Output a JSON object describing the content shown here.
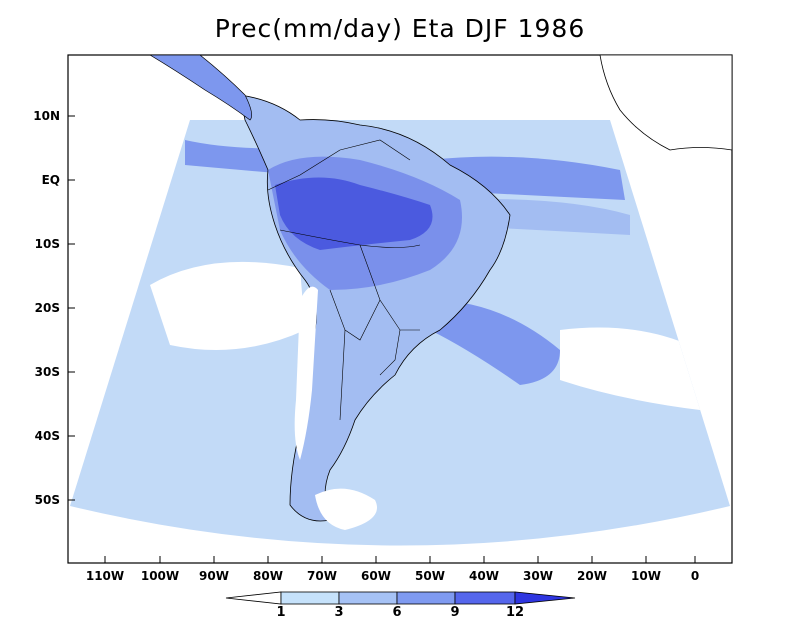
{
  "title": "Prec(mm/day) Eta DJF 1986",
  "map": {
    "lat_labels": [
      "10N",
      "EQ",
      "10S",
      "20S",
      "30S",
      "40S",
      "50S"
    ],
    "lon_labels": [
      "110W",
      "100W",
      "90W",
      "80W",
      "70W",
      "60W",
      "50W",
      "40W",
      "30W",
      "20W",
      "10W",
      "0"
    ]
  },
  "colorbar": {
    "labels": [
      "1",
      "3",
      "6",
      "9",
      "12"
    ],
    "colors": [
      "#ffffff",
      "#c6e2fb",
      "#a6c2f5",
      "#7f9af0",
      "#5566ec",
      "#2e35e0"
    ]
  },
  "palette": {
    "ocean": "#c2daf7",
    "ocean_light": "#d9eaf9",
    "medium": "#a3bdf2",
    "strong": "#7d97ee",
    "heavy": "#5a6ce6",
    "max": "#3a45d8",
    "dry": "#ffffff"
  }
}
